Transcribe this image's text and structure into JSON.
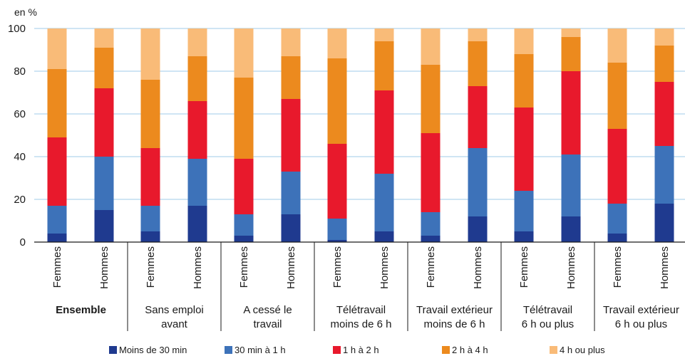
{
  "chart_data": {
    "type": "bar",
    "stacked": true,
    "unit_label": "en %",
    "ylim": [
      0,
      100
    ],
    "yticks": [
      0,
      20,
      40,
      60,
      80,
      100
    ],
    "grid": true,
    "legend_position": "bottom",
    "groups": [
      {
        "label": "Ensemble",
        "bold": true
      },
      {
        "label": "Sans emploi avant",
        "bold": false
      },
      {
        "label": "A cessé le travail",
        "bold": false
      },
      {
        "label": "Télétravail moins de 6 h",
        "bold": false
      },
      {
        "label": "Travail extérieur moins de 6 h",
        "bold": false
      },
      {
        "label": "Télétravail 6 h ou plus",
        "bold": false
      },
      {
        "label": "Travail extérieur 6 h ou plus",
        "bold": false
      }
    ],
    "group_lines": [
      [
        "Ensemble"
      ],
      [
        "Sans emploi",
        "avant"
      ],
      [
        "A cessé le",
        "travail"
      ],
      [
        "Télétravail",
        "moins de 6 h"
      ],
      [
        "Travail extérieur",
        "moins de 6 h"
      ],
      [
        "Télétravail",
        "6 h ou plus"
      ],
      [
        "Travail extérieur",
        "6 h ou plus"
      ]
    ],
    "categories": [
      "Femmes",
      "Hommes",
      "Femmes",
      "Hommes",
      "Femmes",
      "Hommes",
      "Femmes",
      "Hommes",
      "Femmes",
      "Hommes",
      "Femmes",
      "Hommes",
      "Femmes",
      "Hommes"
    ],
    "series": [
      {
        "name": "Moins de 30 min",
        "color": "#1f3a8f",
        "values": [
          4,
          15,
          5,
          17,
          3,
          13,
          1,
          5,
          3,
          12,
          5,
          12,
          4,
          18
        ]
      },
      {
        "name": "30 min à 1 h",
        "color": "#3d72b9",
        "values": [
          13,
          25,
          12,
          22,
          10,
          20,
          10,
          27,
          11,
          32,
          19,
          29,
          14,
          27
        ]
      },
      {
        "name": "1 h à 2 h",
        "color": "#e8192c",
        "values": [
          32,
          32,
          27,
          27,
          26,
          34,
          35,
          39,
          37,
          29,
          39,
          39,
          35,
          30
        ]
      },
      {
        "name": "2 h à 4 h",
        "color": "#ec8a1e",
        "values": [
          32,
          19,
          32,
          21,
          38,
          20,
          40,
          23,
          32,
          21,
          25,
          16,
          31,
          17
        ]
      },
      {
        "name": "4 h ou plus",
        "color": "#f9bb78",
        "values": [
          19,
          9,
          24,
          13,
          23,
          13,
          14,
          6,
          17,
          6,
          12,
          4,
          16,
          8
        ]
      }
    ]
  }
}
